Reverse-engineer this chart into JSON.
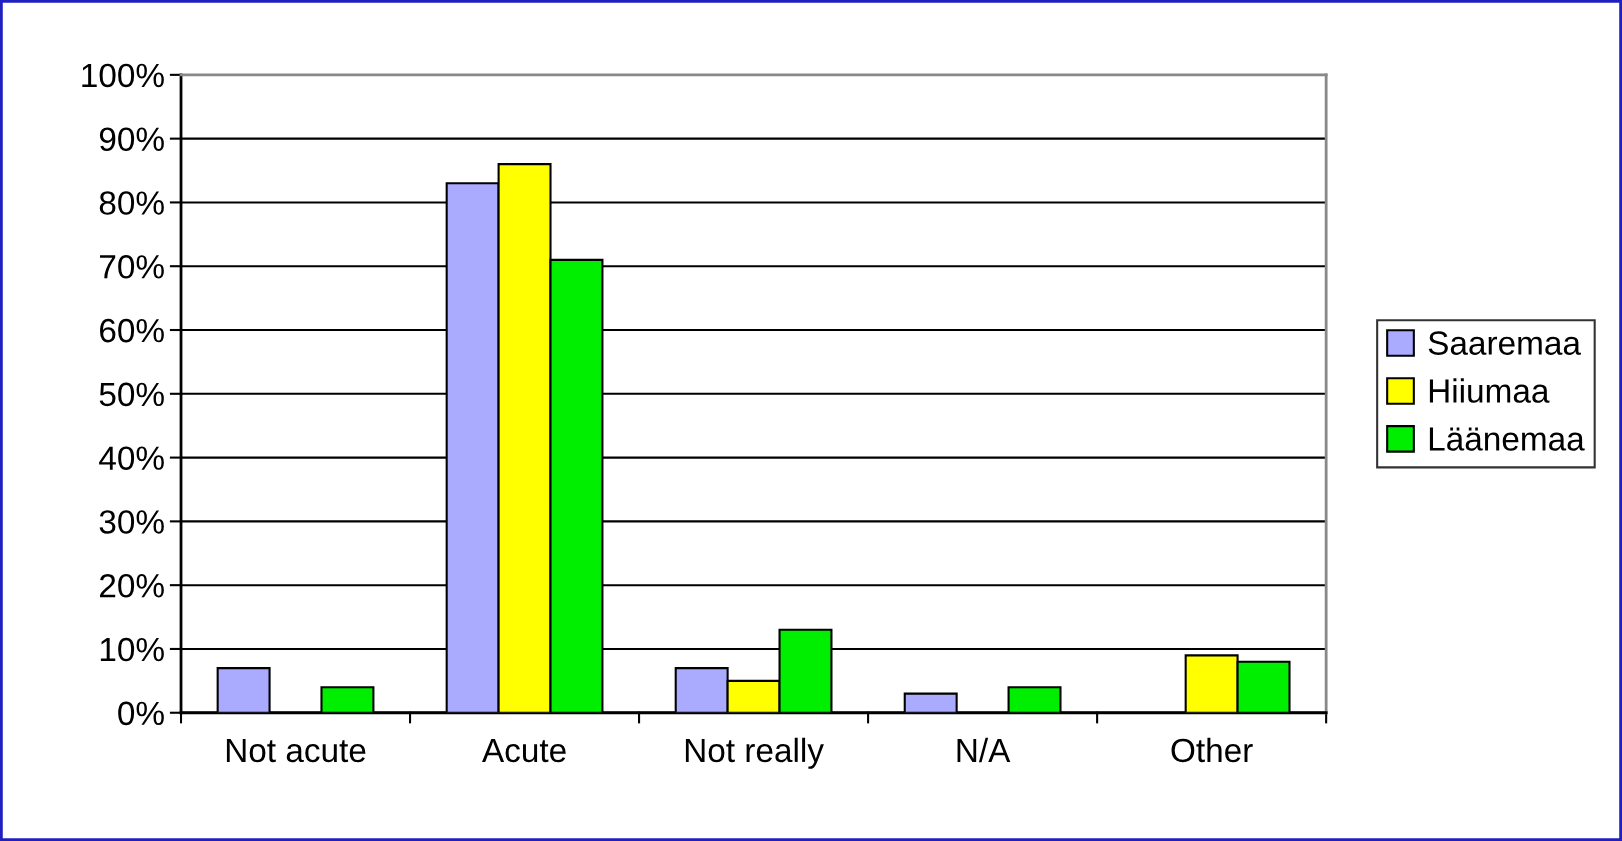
{
  "chart_data": {
    "type": "bar",
    "categories": [
      "Not acute",
      "Acute",
      "Not really",
      "N/A",
      "Other"
    ],
    "series": [
      {
        "name": "Saaremaa",
        "color": "#aaaaff",
        "values": [
          7,
          83,
          7,
          3,
          0
        ]
      },
      {
        "name": "Hiiumaa",
        "color": "#ffff00",
        "values": [
          0,
          86,
          5,
          0,
          9
        ]
      },
      {
        "name": "Läänemaa",
        "color": "#00ee00",
        "values": [
          4,
          71,
          13,
          4,
          8
        ]
      }
    ],
    "ylim": [
      0,
      100
    ],
    "yticks": [
      {
        "value": 0,
        "label": "0%"
      },
      {
        "value": 10,
        "label": "10%"
      },
      {
        "value": 20,
        "label": "20%"
      },
      {
        "value": 30,
        "label": "30%"
      },
      {
        "value": 40,
        "label": "40%"
      },
      {
        "value": 50,
        "label": "50%"
      },
      {
        "value": 60,
        "label": "60%"
      },
      {
        "value": 70,
        "label": "70%"
      },
      {
        "value": 80,
        "label": "80%"
      },
      {
        "value": 90,
        "label": "90%"
      },
      {
        "value": 100,
        "label": "100%"
      }
    ],
    "grid": "y",
    "legend": "right"
  }
}
